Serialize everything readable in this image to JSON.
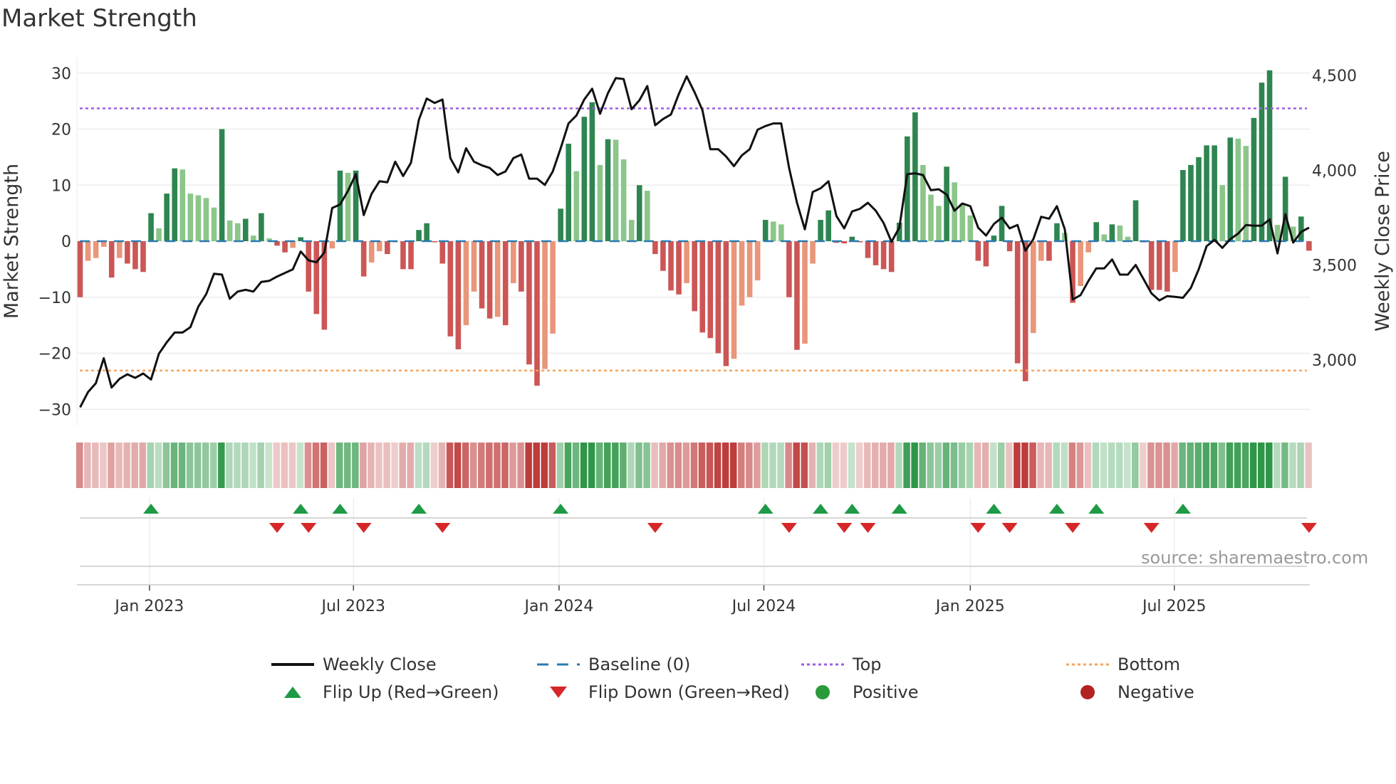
{
  "title": "Market Strength",
  "source": "source: sharemaestro.com",
  "colors": {
    "pos_dark": "#2e8550",
    "pos_light": "#8cc68a",
    "neg_dark": "#cc5656",
    "neg_light": "#e9967a",
    "close": "#111111",
    "baseline": "#2a7ab0",
    "top": "#9d5fe0",
    "bottom": "#f4a460",
    "flip_up": "#1f9a46",
    "flip_down": "#d62728",
    "positive": "#2a9a3a",
    "negative": "#b22222"
  },
  "legend": [
    {
      "key": "close",
      "label": "Weekly Close",
      "symbol": "line"
    },
    {
      "key": "baseline",
      "label": "Baseline (0)",
      "symbol": "dash"
    },
    {
      "key": "top",
      "label": "Top",
      "symbol": "dot"
    },
    {
      "key": "bottom",
      "label": "Bottom",
      "symbol": "dot"
    },
    {
      "key": "flip_up",
      "label": "Flip Up (Red→Green)",
      "symbol": "up"
    },
    {
      "key": "flip_down",
      "label": "Flip Down (Green→Red)",
      "symbol": "down"
    },
    {
      "key": "positive",
      "label": "Positive",
      "symbol": "circle"
    },
    {
      "key": "negative",
      "label": "Negative",
      "symbol": "circle"
    }
  ],
  "chart_data": {
    "type": "bar",
    "title": "Market Strength",
    "ylabel": "Market Strength",
    "y2label": "Weekly Close Price",
    "ylim": [
      -33,
      32
    ],
    "y2lim": [
      2680,
      4580
    ],
    "yticks": [
      -30,
      -20,
      -10,
      0,
      10,
      20,
      30
    ],
    "yticklabels": [
      "−30",
      "−20",
      "−10",
      "0",
      "10",
      "20",
      "30"
    ],
    "y2ticks": [
      3000,
      3500,
      4000,
      4500
    ],
    "y2ticklabels": [
      "3,000",
      "3,500",
      "4,000",
      "4,500"
    ],
    "xticks": [
      {
        "week": 8.8,
        "label": "Jan 2023"
      },
      {
        "week": 34.7,
        "label": "Jul 2023"
      },
      {
        "week": 60.8,
        "label": "Jan 2024"
      },
      {
        "week": 86.8,
        "label": "Jul 2024"
      },
      {
        "week": 113,
        "label": "Jan 2025"
      },
      {
        "week": 138.9,
        "label": "Jul 2025"
      }
    ],
    "top": 23.7,
    "bottom": -23.1,
    "baseline": 0,
    "strength": [
      -10,
      -3.5,
      -3,
      -1,
      -6.5,
      -3,
      -4,
      -5,
      -5.5,
      5,
      2.3,
      8.5,
      13,
      12.8,
      8.5,
      8.2,
      7.7,
      6,
      20,
      3.7,
      3.2,
      4,
      1,
      5,
      0.5,
      -0.8,
      -2,
      -1.2,
      0.7,
      -9,
      -13,
      -15.8,
      -1.3,
      12.6,
      12.2,
      12.6,
      -6.3,
      -3.8,
      -1.8,
      -2.3,
      -0.2,
      -5,
      -5,
      2,
      3.2,
      -0.2,
      -4,
      -17,
      -19.3,
      -15,
      -9,
      -12,
      -13.8,
      -13.5,
      -15,
      -7.5,
      -9,
      -22,
      -25.8,
      -22.8,
      -16.5,
      5.8,
      17.4,
      12.5,
      22.2,
      24.8,
      13.6,
      18.2,
      18.1,
      14.6,
      3.8,
      10,
      9,
      -2.3,
      -5.3,
      -8.8,
      -9.5,
      -7.5,
      -12.5,
      -16.3,
      -17.3,
      -20,
      -22.3,
      -21,
      -11.5,
      -10,
      -7,
      3.8,
      3.5,
      3,
      -10,
      -19.4,
      -18.3,
      -4,
      3.8,
      5.5,
      -0.3,
      -0.4,
      0.8,
      -0.2,
      -3,
      -4.3,
      -5,
      -5.5,
      3.3,
      18.7,
      23,
      13.6,
      8.3,
      6.3,
      13.3,
      10.5,
      6.7,
      4.6,
      -3.5,
      -4.5,
      1,
      6.3,
      -1.8,
      -21.8,
      -25,
      -16.4,
      -3.5,
      -3.5,
      3.2,
      1.5,
      -11,
      -8,
      -2,
      3.4,
      1.2,
      3,
      2.8,
      0.8,
      7.3,
      -0.2,
      -8.7,
      -8.7,
      -9,
      -5.5,
      12.7,
      13.6,
      15,
      17.1,
      17.1,
      10,
      18.5,
      18.3,
      17,
      22,
      28.3,
      30.5,
      2.9,
      11.5,
      2.6,
      4.4,
      -1.7
    ],
    "weekly_close": [
      2751,
      2831,
      2878,
      3009,
      2855,
      2901,
      2925,
      2906,
      2929,
      2897,
      3033,
      3094,
      3145,
      3145,
      3173,
      3281,
      3347,
      3455,
      3450,
      3323,
      3361,
      3370,
      3361,
      3412,
      3417,
      3440,
      3459,
      3478,
      3572,
      3525,
      3515,
      3567,
      3801,
      3820,
      3891,
      3980,
      3764,
      3876,
      3942,
      3937,
      4045,
      3970,
      4040,
      4266,
      4378,
      4355,
      4373,
      4064,
      3989,
      4116,
      4045,
      4026,
      4012,
      3975,
      3994,
      4064,
      4083,
      3956,
      3956,
      3923,
      3994,
      4116,
      4247,
      4289,
      4373,
      4430,
      4298,
      4406,
      4486,
      4481,
      4322,
      4369,
      4444,
      4237,
      4270,
      4294,
      4402,
      4495,
      4411,
      4317,
      4111,
      4111,
      4073,
      4022,
      4078,
      4111,
      4214,
      4233,
      4247,
      4247,
      4012,
      3829,
      3689,
      3886,
      3905,
      3942,
      3759,
      3694,
      3783,
      3797,
      3829,
      3787,
      3722,
      3623,
      3698,
      3980,
      3984,
      3975,
      3895,
      3900,
      3872,
      3787,
      3825,
      3811,
      3698,
      3656,
      3717,
      3750,
      3694,
      3712,
      3576,
      3637,
      3755,
      3745,
      3811,
      3689,
      3319,
      3342,
      3417,
      3483,
      3483,
      3530,
      3450,
      3450,
      3501,
      3426,
      3351,
      3314,
      3337,
      3333,
      3328,
      3380,
      3478,
      3600,
      3633,
      3591,
      3637,
      3666,
      3712,
      3708,
      3708,
      3741,
      3562,
      3769,
      3619,
      3675,
      3698
    ],
    "flip_up_weeks": [
      9,
      28,
      33,
      43,
      61,
      87,
      94,
      98,
      104,
      116,
      124,
      129,
      140
    ],
    "flip_down_weeks": [
      25,
      29,
      36,
      46,
      73,
      90,
      97,
      100,
      114,
      118,
      126,
      136,
      156
    ]
  }
}
